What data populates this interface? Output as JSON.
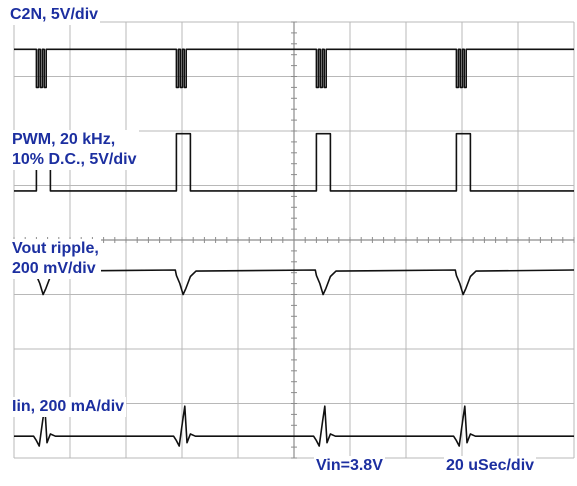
{
  "chart_data": {
    "type": "line",
    "grid": true,
    "grid_divisions": {
      "x": 10,
      "y": 8
    },
    "colors": {
      "grid": "#b8b8b8",
      "trace": "#111111",
      "label": "#1c2fa0",
      "background": "#ffffff"
    },
    "time_per_div": "20 uSec/div",
    "pulse_period_div": 2.5,
    "pulse_starts_div": [
      0.4,
      2.9,
      5.4,
      7.9
    ],
    "series": [
      {
        "name_lines": [
          "C2N, 5V/div"
        ],
        "kind": "burst_low",
        "high_div": 7.5,
        "low_div": 6.8,
        "burst_pulses": 3
      },
      {
        "name_lines": [
          "PWM, 20 kHz,",
          "10% D.C., 5V/div"
        ],
        "kind": "pulse_high",
        "low_div": 4.9,
        "high_div": 5.95,
        "duty_cycle": 0.1
      },
      {
        "name_lines": [
          "Vout ripple,",
          "200 mV/div"
        ],
        "kind": "droop",
        "baseline_div": 3.45,
        "dip_div": 0.45
      },
      {
        "name_lines": [
          "Iin, 200 mA/div"
        ],
        "kind": "spike",
        "baseline_div": 0.4,
        "spike_div": 0.55
      }
    ],
    "annotations": [
      "Vin=3.8V",
      "20 uSec/div"
    ]
  }
}
